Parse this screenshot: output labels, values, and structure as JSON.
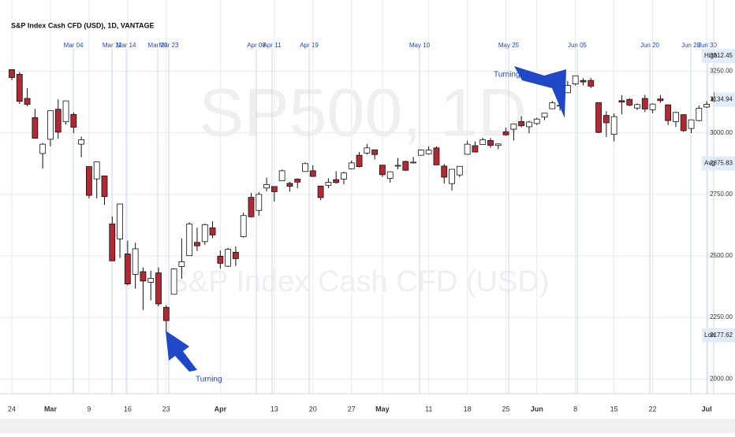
{
  "chart_data": {
    "type": "candlestick",
    "title": "S&P Index Cash CFD (USD), 1D, VANTAGE",
    "watermark": "SP500, 1D",
    "watermark_subtitle": "S&P Index Cash CFD (USD)",
    "annotations": [
      "Turning",
      "Turning"
    ],
    "events": [
      "Mar 04",
      "Mar 11",
      "Mar 14",
      "Mar 20",
      "Mar 23",
      "Apr 08",
      "Apr 11",
      "Apr 19",
      "May 10",
      "May 25",
      "Jun 05",
      "Jun 20",
      "Jun 28",
      "Jun 30"
    ],
    "up_color": "#ffffff",
    "down_color": "#b22833",
    "outline_color": "#111111",
    "grid": true,
    "ylim": [
      1940,
      3540
    ],
    "yticks": [
      {
        "value": 2000,
        "label": "2000.00"
      },
      {
        "value": 2250,
        "label": "2250.00"
      },
      {
        "value": 2500,
        "label": "2500.00"
      },
      {
        "value": 2750,
        "label": "2750.00"
      },
      {
        "value": 3000,
        "label": "3000.00"
      },
      {
        "value": 3250,
        "label": "3250.00"
      }
    ],
    "price_labels": [
      {
        "name": "High",
        "value": 3312.45
      },
      {
        "name": "Avg",
        "value": 2875.83
      },
      {
        "name": "Low",
        "value": 2177.62
      },
      {
        "name": null,
        "value": 3134.94
      }
    ],
    "categories": [
      "24",
      null,
      null,
      null,
      null,
      "Mar",
      null,
      null,
      null,
      null,
      "9",
      null,
      null,
      null,
      null,
      "16",
      null,
      null,
      null,
      null,
      "23",
      null,
      null,
      null,
      null,
      null,
      null,
      "Apr",
      null,
      null,
      null,
      null,
      null,
      null,
      "13",
      null,
      null,
      null,
      null,
      "20",
      null,
      null,
      null,
      null,
      "27",
      null,
      null,
      null,
      "May",
      null,
      null,
      null,
      null,
      null,
      "11",
      null,
      null,
      null,
      null,
      "18",
      null,
      null,
      null,
      null,
      "25",
      null,
      null,
      null,
      "Jun",
      null,
      null,
      null,
      null,
      "8",
      null,
      null,
      null,
      null,
      "15",
      null,
      null,
      null,
      null,
      "22",
      null,
      null,
      null,
      null,
      null,
      null,
      "Jul",
      null
    ],
    "open": [
      3257,
      3238,
      3140,
      3062,
      2916,
      2974,
      3096,
      3045,
      3075,
      2954,
      2863,
      2813,
      2825,
      2630,
      2569,
      2508,
      2425,
      2436,
      2393,
      2431,
      2291,
      2344,
      2457,
      2501,
      2555,
      2558,
      2614,
      2499,
      2458,
      2515,
      2578,
      2738,
      2685,
      2776,
      2782,
      2805,
      2795,
      2812,
      2843,
      2846,
      2784,
      2787,
      2810,
      2812,
      2854,
      2909,
      2918,
      2931,
      2869,
      2815,
      2868,
      2884,
      2879,
      2909,
      2915,
      2939,
      2865,
      2794,
      2829,
      2913,
      2948,
      2953,
      2969,
      2949,
      3004,
      3015,
      3046,
      3025,
      3038,
      3064,
      3098,
      3111,
      3163,
      3199,
      3213,
      3213,
      3123,
      3071,
      2994,
      3131,
      3136,
      3101,
      3140,
      3094,
      3138,
      3114,
      3046,
      3074,
      3018,
      3050,
      3105,
      3143
    ],
    "high": [
      3259,
      3247,
      3182,
      3097,
      2959,
      3090,
      3136,
      3130,
      3083,
      2985,
      2863,
      2882,
      2825,
      2660,
      2711,
      2562,
      2553,
      2453,
      2440,
      2453,
      2300,
      2449,
      2571,
      2637,
      2615,
      2631,
      2641,
      2522,
      2533,
      2538,
      2676,
      2756,
      2760,
      2818,
      2782,
      2851,
      2801,
      2815,
      2880,
      2868,
      2785,
      2815,
      2844,
      2842,
      2887,
      2922,
      2954,
      2931,
      2869,
      2844,
      2898,
      2887,
      2902,
      2933,
      2945,
      2945,
      2874,
      2852,
      2865,
      2968,
      2965,
      2980,
      2979,
      2957,
      3021,
      3036,
      3068,
      3049,
      3062,
      3081,
      3130,
      3128,
      3211,
      3233,
      3222,
      3223,
      3123,
      3088,
      3079,
      3154,
      3141,
      3120,
      3155,
      3120,
      3154,
      3115,
      3086,
      3074,
      3053,
      3111,
      3128,
      3165
    ],
    "low": [
      3214,
      3118,
      3108,
      2977,
      2855,
      2945,
      2976,
      3034,
      2999,
      2901,
      2734,
      2734,
      2707,
      2478,
      2492,
      2380,
      2367,
      2280,
      2319,
      2295,
      2191,
      2344,
      2407,
      2500,
      2520,
      2545,
      2572,
      2448,
      2455,
      2459,
      2574,
      2657,
      2663,
      2762,
      2721,
      2805,
      2761,
      2775,
      2842,
      2821,
      2727,
      2775,
      2794,
      2791,
      2852,
      2860,
      2912,
      2892,
      2821,
      2798,
      2852,
      2845,
      2876,
      2909,
      2912,
      2869,
      2794,
      2766,
      2820,
      2913,
      2921,
      2953,
      2939,
      2933,
      2988,
      2969,
      3023,
      2998,
      3032,
      3052,
      3098,
      3090,
      3163,
      3193,
      3193,
      3181,
      2999,
      2984,
      2965,
      3076,
      3108,
      3093,
      3084,
      3080,
      3122,
      3032,
      3024,
      3004,
      2999,
      3047,
      3101,
      3124
    ],
    "close": [
      3225,
      3128,
      3116,
      2978,
      2954,
      3090,
      3003,
      3130,
      3023,
      2972,
      2746,
      2882,
      2741,
      2480,
      2711,
      2386,
      2529,
      2398,
      2409,
      2305,
      2237,
      2447,
      2476,
      2630,
      2541,
      2627,
      2585,
      2470,
      2527,
      2489,
      2664,
      2659,
      2750,
      2790,
      2761,
      2846,
      2783,
      2800,
      2875,
      2823,
      2737,
      2799,
      2798,
      2837,
      2878,
      2863,
      2939,
      2912,
      2830,
      2842,
      2868,
      2848,
      2881,
      2930,
      2930,
      2870,
      2820,
      2852,
      2864,
      2954,
      2922,
      2972,
      2949,
      2955,
      2992,
      3036,
      3029,
      3044,
      3056,
      3080,
      3122,
      3112,
      3193,
      3232,
      3207,
      3190,
      3002,
      3041,
      3066,
      3125,
      3113,
      3115,
      3097,
      3117,
      3131,
      3050,
      3083,
      3009,
      3053,
      3100,
      3116,
      3130
    ]
  }
}
